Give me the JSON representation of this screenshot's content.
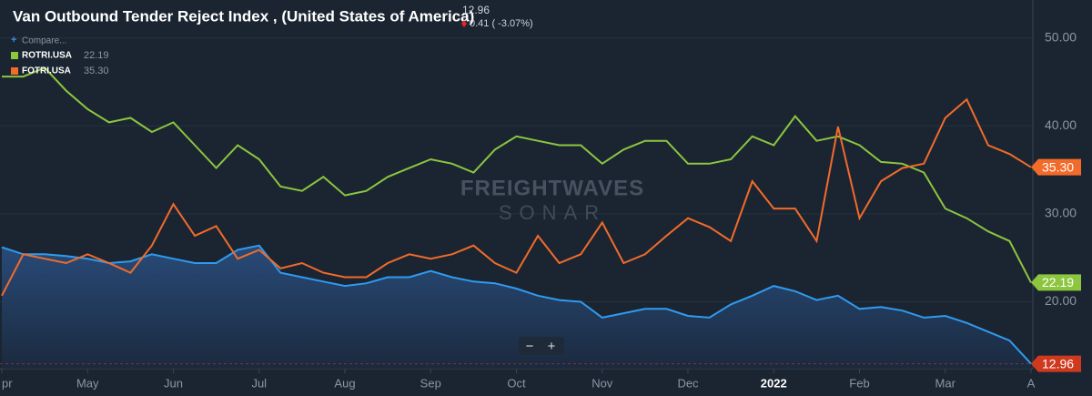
{
  "chart_data": {
    "type": "line",
    "title": "Van Outbound Tender Reject Index , (United States of America)",
    "change": "0.41 ( -3.07%)",
    "compare_label": "Compare...",
    "watermark": [
      "FREIGHTWAVES",
      "SONAR"
    ],
    "zoom": [
      "−",
      "+"
    ],
    "categories": [
      "pr",
      null,
      null,
      null,
      "May",
      null,
      null,
      null,
      "Jun",
      null,
      null,
      null,
      "Jul",
      null,
      null,
      null,
      "Aug",
      null,
      null,
      null,
      "Sep",
      null,
      null,
      null,
      "Oct",
      null,
      null,
      null,
      "Nov",
      null,
      null,
      null,
      "Dec",
      null,
      null,
      null,
      "2022",
      null,
      null,
      null,
      "Feb",
      null,
      null,
      null,
      "Mar",
      null,
      null,
      null,
      "A"
    ],
    "series": [
      {
        "color": "#2f9bf0",
        "area": true,
        "last_label": "12.96",
        "badge_color": "#cf3a1f",
        "values": [
          26.2,
          25.4,
          25.4,
          25.2,
          24.9,
          24.4,
          24.6,
          25.4,
          24.9,
          24.4,
          24.4,
          25.9,
          26.4,
          23.3,
          22.8,
          22.3,
          21.8,
          22.1,
          22.8,
          22.8,
          23.5,
          22.8,
          22.3,
          22.1,
          21.5,
          20.7,
          20.2,
          20.0,
          18.2,
          18.7,
          19.2,
          19.2,
          18.4,
          18.2,
          19.7,
          20.7,
          21.8,
          21.2,
          20.2,
          20.7,
          19.2,
          19.4,
          19.0,
          18.2,
          18.4,
          17.6,
          16.6,
          15.6,
          12.96
        ]
      },
      {
        "name": "ROTRI.USA",
        "color": "#8cc63f",
        "last_label": "22.19",
        "badge_color": "#8cc63f",
        "values": [
          45.6,
          45.6,
          46.6,
          44.0,
          41.9,
          40.4,
          40.9,
          39.3,
          40.4,
          37.8,
          35.2,
          37.8,
          36.2,
          33.1,
          32.6,
          34.2,
          32.1,
          32.6,
          34.2,
          35.2,
          36.2,
          35.7,
          34.7,
          37.3,
          38.8,
          38.3,
          37.8,
          37.8,
          35.7,
          37.3,
          38.3,
          38.3,
          35.7,
          35.7,
          36.2,
          38.8,
          37.8,
          41.1,
          38.3,
          38.8,
          37.8,
          35.9,
          35.7,
          34.7,
          30.6,
          29.5,
          28.0,
          26.9,
          22.19
        ]
      },
      {
        "name": "FOTRI.USA",
        "color": "#f26b2a",
        "last_label": "35.30",
        "badge_color": "#f26b2a",
        "values": [
          20.7,
          25.4,
          24.9,
          24.4,
          25.4,
          24.4,
          23.3,
          26.4,
          31.1,
          27.5,
          28.6,
          24.9,
          25.9,
          23.8,
          24.4,
          23.3,
          22.8,
          22.8,
          24.4,
          25.4,
          24.9,
          25.4,
          26.4,
          24.4,
          23.3,
          27.5,
          24.4,
          25.4,
          29.0,
          24.4,
          25.4,
          27.5,
          29.5,
          28.5,
          26.9,
          33.7,
          30.6,
          30.6,
          26.9,
          39.9,
          29.5,
          33.7,
          35.2,
          35.7,
          40.9,
          43.0,
          37.8,
          36.8,
          35.3
        ]
      }
    ],
    "ylim": [
      12.4,
      54.3
    ],
    "yticks": [
      {
        "value": 20,
        "label": "20.00"
      },
      {
        "value": 30,
        "label": "30.00"
      },
      {
        "value": 40,
        "label": "40.00"
      },
      {
        "value": 50,
        "label": "50.00"
      }
    ],
    "grid": true
  }
}
